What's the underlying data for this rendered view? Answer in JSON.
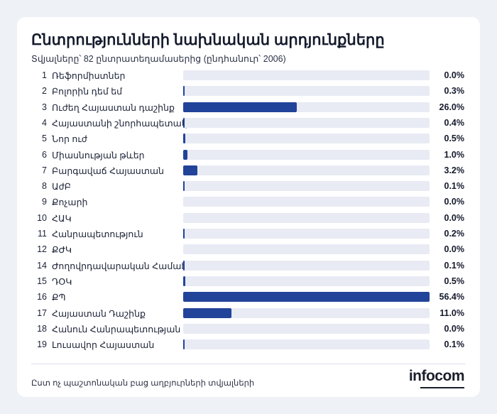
{
  "header": {
    "title": "Ընտրությունների նախնական արդյունքները",
    "subtitle": "Տվյալները՝ 82 ընտրատեղամասերից (ընդհանուր՝ 2006)"
  },
  "footer": {
    "source": "Ըստ ոչ պաշտոնական բաց աղբյուրների տվյալների",
    "logo": "infocom"
  },
  "colors": {
    "bar": "#22439a",
    "track": "#e8ebf4"
  },
  "chart_data": {
    "type": "bar",
    "orientation": "horizontal",
    "title": "Ընտրությունների նախնական արդյունքները",
    "subtitle": "Տվյալները՝ 82 ընտրատեղամասերից (ընդհանուր՝ 2006)",
    "xlim": [
      0,
      56.4
    ],
    "numbers": [
      "1",
      "2",
      "3",
      "4",
      "5",
      "6",
      "7",
      "8",
      "9",
      "10",
      "11",
      "12",
      "14",
      "15",
      "16",
      "17",
      "18",
      "19"
    ],
    "categories": [
      "Ռեֆորմիստներ",
      "Բոլորին դեմ եմ",
      "Ուժեղ Հայաստան դաշինք",
      "Հայաստանի շնորհապետակ",
      "Նոր ուժ",
      "Միասնության թևեր",
      "Բարգավաճ Հայաստան",
      "ԱժԲ",
      "Քոչարի",
      "ՀԱԿ",
      "Հանրապետություն",
      "ՔԺԿ",
      "Ժողովրդավարական Համաէ",
      "ԴՕԿ",
      "ՔՊ",
      "Հայաստան Դաշինք",
      "Հանուն Հանրապետության",
      "Լուսավոր Հայաստան"
    ],
    "values": [
      0.0,
      0.3,
      26.0,
      0.4,
      0.5,
      1.0,
      3.2,
      0.1,
      0.0,
      0.0,
      0.2,
      0.0,
      0.1,
      0.5,
      56.4,
      11.0,
      0.0,
      0.1
    ],
    "labels": [
      "0.0%",
      "0.3%",
      "26.0%",
      "0.4%",
      "0.5%",
      "1.0%",
      "3.2%",
      "0.1%",
      "0.0%",
      "0.0%",
      "0.2%",
      "0.0%",
      "0.1%",
      "0.5%",
      "56.4%",
      "11.0%",
      "0.0%",
      "0.1%"
    ]
  }
}
